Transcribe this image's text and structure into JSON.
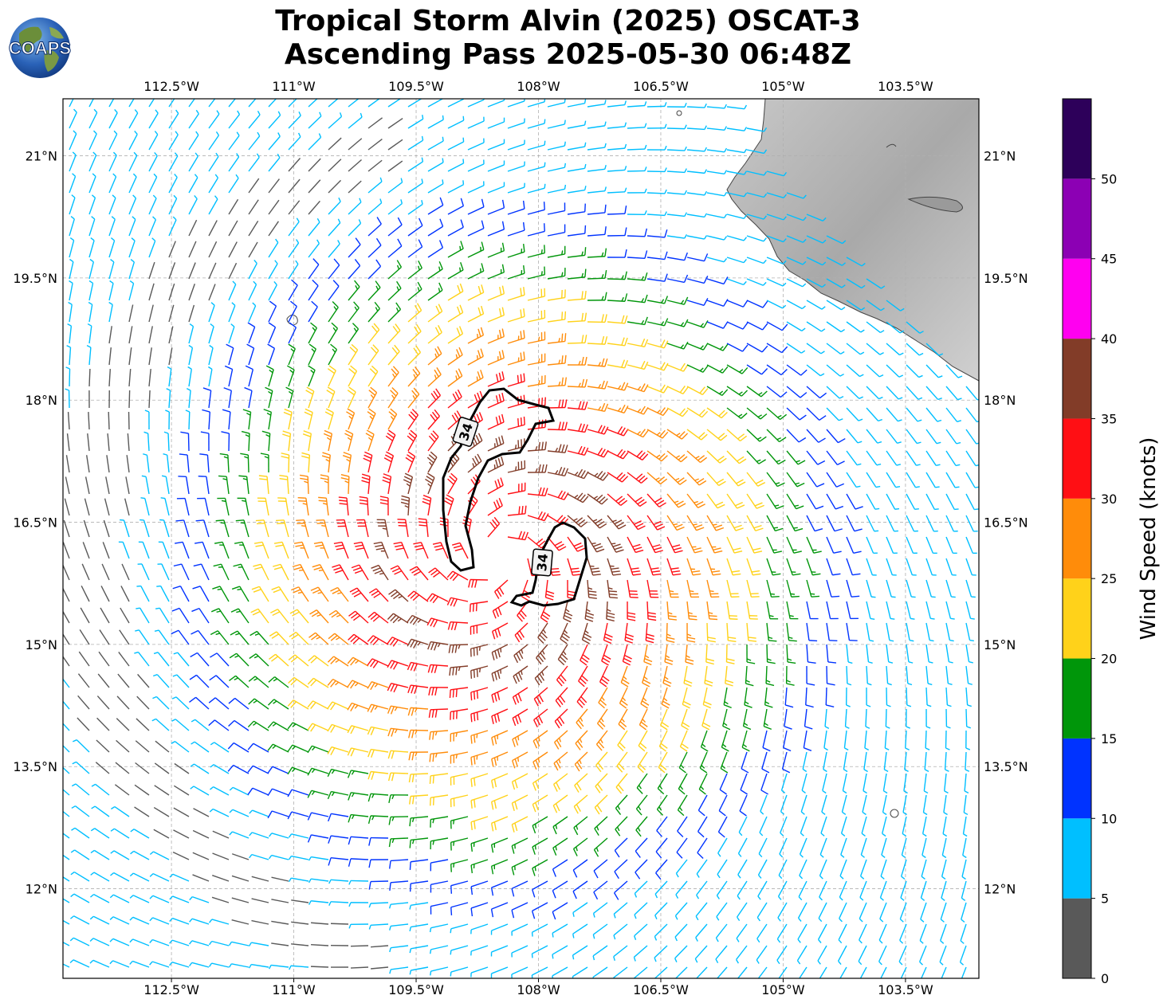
{
  "title": {
    "line1": "Tropical Storm Alvin (2025) OSCAT-3",
    "line2": "Ascending Pass 2025-05-30 06:48Z"
  },
  "logo": {
    "text": "COAPS"
  },
  "map": {
    "lon_labels": [
      "112.5°W",
      "111°W",
      "109.5°W",
      "108°W",
      "106.5°W",
      "105°W",
      "103.5°W"
    ],
    "lon_values": [
      -112.5,
      -111,
      -109.5,
      -108,
      -106.5,
      -105,
      -103.5
    ],
    "lat_labels": [
      "21°N",
      "19.5°N",
      "18°N",
      "16.5°N",
      "15°N",
      "13.5°N",
      "12°N"
    ],
    "lat_values": [
      21,
      19.5,
      18,
      16.5,
      15,
      13.5,
      12
    ],
    "extent": {
      "lon_min": -113.83,
      "lon_max": -102.6,
      "lat_min": 10.9,
      "lat_max": 21.7
    },
    "storm_center": {
      "lon": -108.5,
      "lat": 16.1
    },
    "contour_label": "34",
    "contour_labels": [
      "34",
      "34"
    ],
    "land_color": "#b5b5b5",
    "grid": true
  },
  "colorbar": {
    "label": "Wind Speed (knots)",
    "ticks": [
      "0",
      "5",
      "10",
      "15",
      "20",
      "25",
      "30",
      "35",
      "40",
      "45",
      "50"
    ],
    "bins": [
      {
        "min": 0,
        "max": 5,
        "color": "#595959"
      },
      {
        "min": 5,
        "max": 10,
        "color": "#00bfff"
      },
      {
        "min": 10,
        "max": 15,
        "color": "#0033ff"
      },
      {
        "min": 15,
        "max": 20,
        "color": "#00960a"
      },
      {
        "min": 20,
        "max": 25,
        "color": "#ffd21a"
      },
      {
        "min": 25,
        "max": 30,
        "color": "#ff8c0a"
      },
      {
        "min": 30,
        "max": 35,
        "color": "#ff0f14"
      },
      {
        "min": 35,
        "max": 40,
        "color": "#823c28"
      },
      {
        "min": 40,
        "max": 45,
        "color": "#ff00f0"
      },
      {
        "min": 45,
        "max": 50,
        "color": "#8c00b4"
      },
      {
        "min": 50,
        "max": 55,
        "color": "#2d005a"
      }
    ]
  }
}
